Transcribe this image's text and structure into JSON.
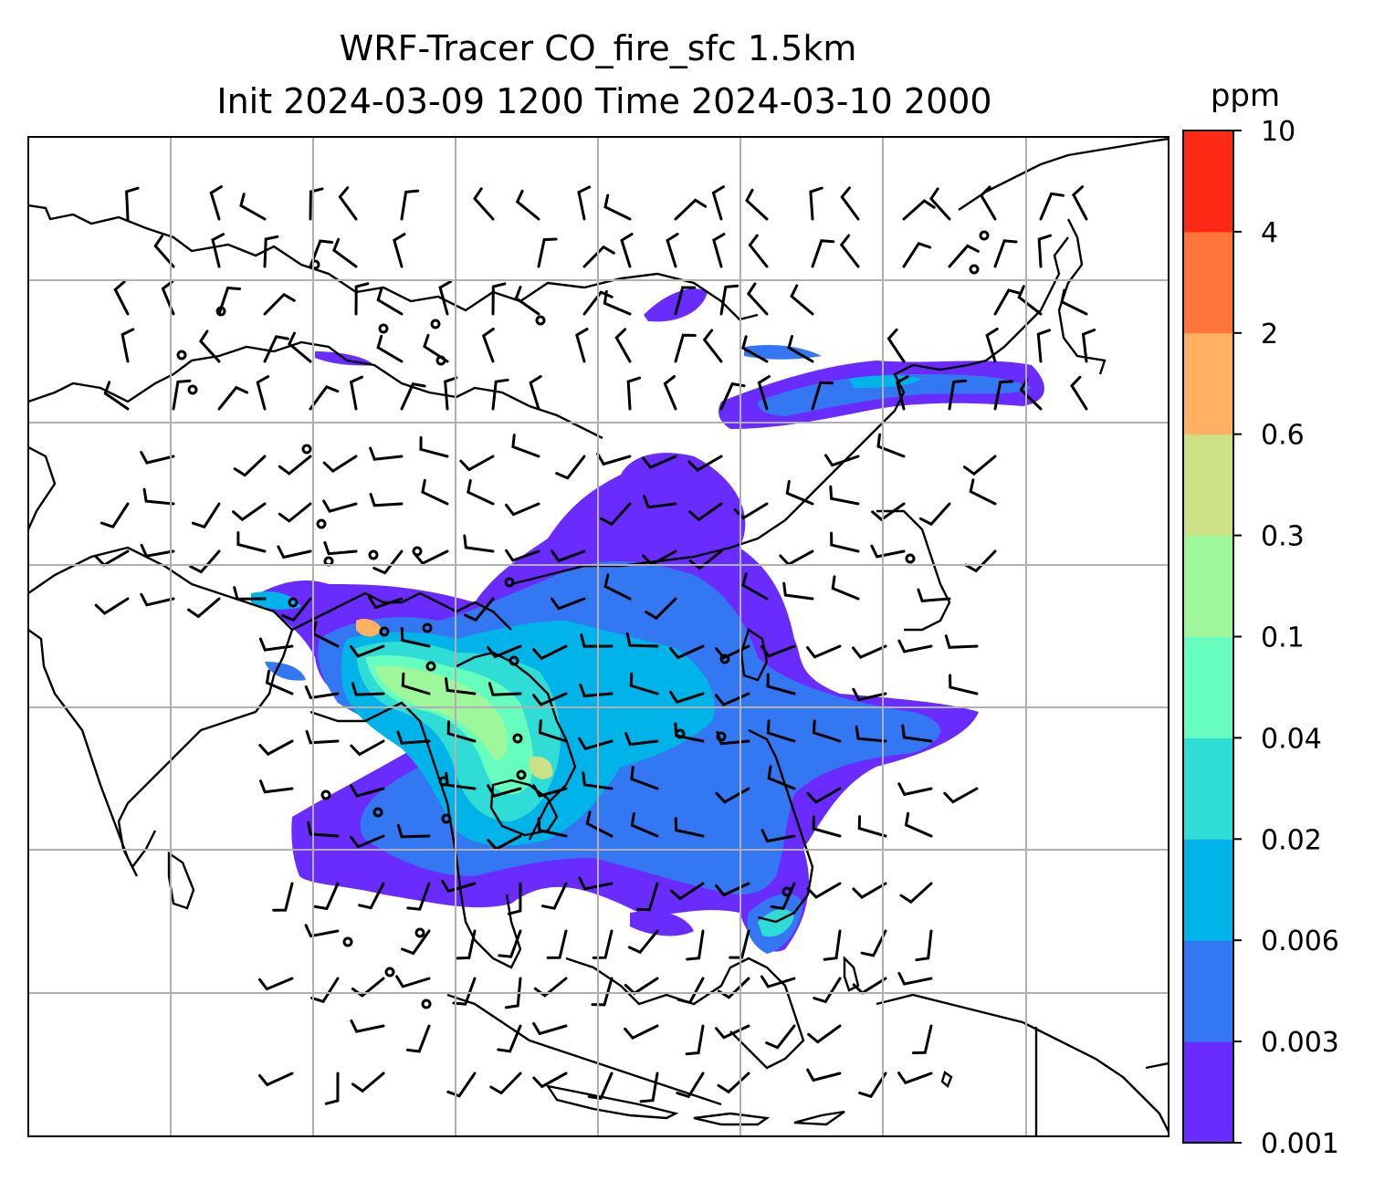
{
  "chart_data": {
    "type": "heatmap",
    "title_line1": "WRF-Tracer CO_fire_sfc 1.5km",
    "title_line2": "Init 2024-03-09 1200 Time 2024-03-10 2000",
    "colorbar": {
      "unit": "ppm",
      "levels": [
        "0.001",
        "0.003",
        "0.006",
        "0.02",
        "0.04",
        "0.1",
        "0.3",
        "0.6",
        "2",
        "4",
        "10"
      ],
      "colors": [
        "#6a2bff",
        "#3477f2",
        "#00b4ea",
        "#2fdcd6",
        "#66fdbe",
        "#9ef79a",
        "#cde085",
        "#ffb060",
        "#ff7439",
        "#ff2a16"
      ]
    },
    "grid": true
  }
}
